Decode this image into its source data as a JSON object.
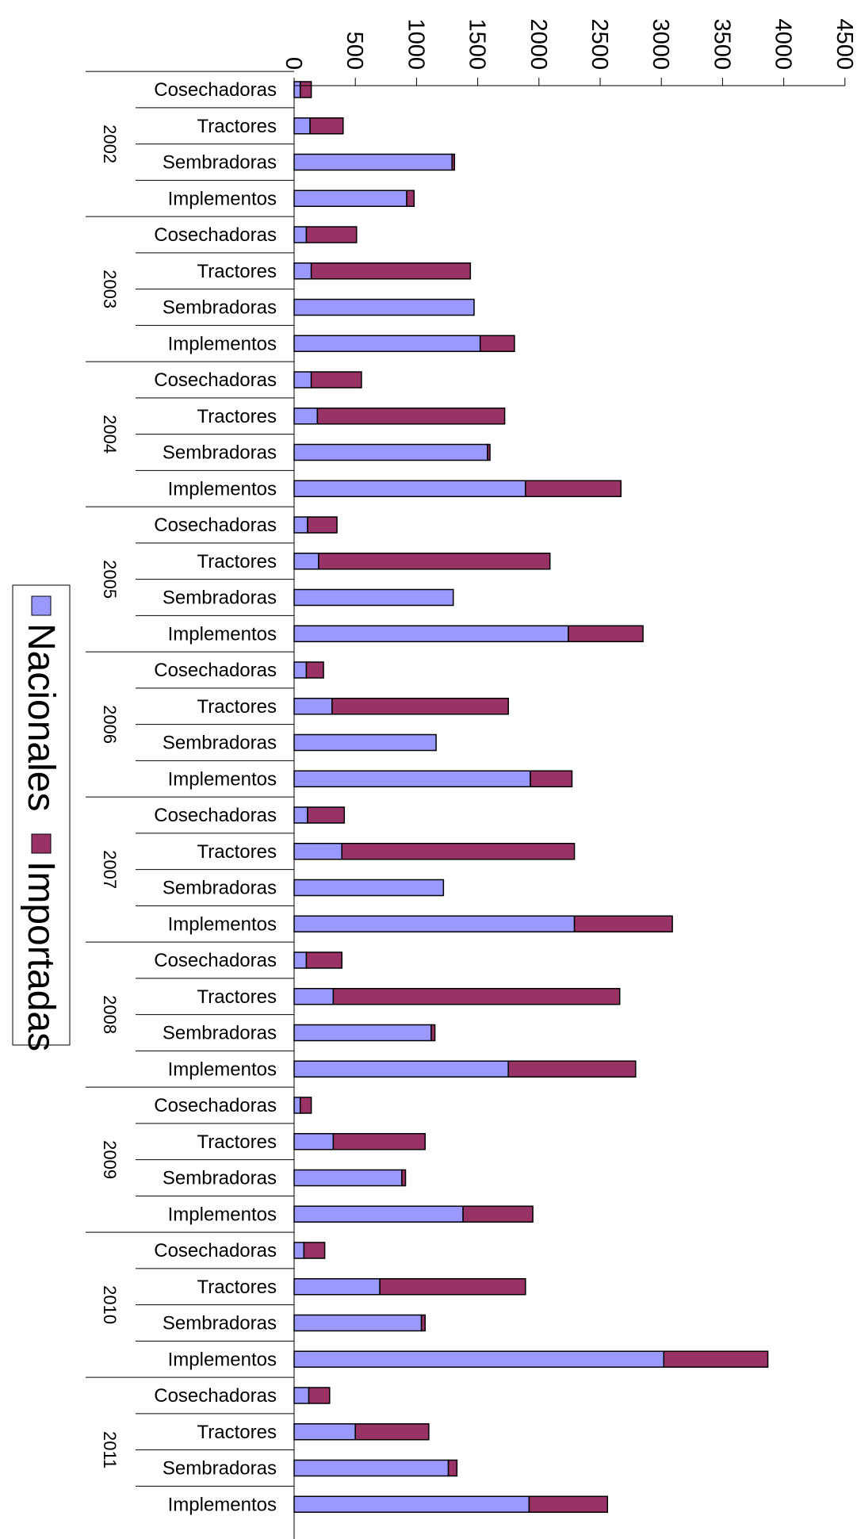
{
  "chart_data": {
    "type": "bar",
    "orientation": "horizontal-stacked",
    "xlim": [
      0,
      4500
    ],
    "ticks": [
      "0",
      "500",
      "1000",
      "1500",
      "2000",
      "2500",
      "3000",
      "3500",
      "4000",
      "4500"
    ],
    "tick_values": [
      0,
      500,
      1000,
      1500,
      2000,
      2500,
      3000,
      3500,
      4000,
      4500
    ],
    "categories": [
      "Cosechadoras",
      "Tractores",
      "Sembradoras",
      "Implementos"
    ],
    "groups": [
      {
        "year": "2002",
        "nacionales": [
          50,
          130,
          1290,
          920
        ],
        "importadas": [
          90,
          270,
          20,
          60
        ]
      },
      {
        "year": "2003",
        "nacionales": [
          100,
          140,
          1470,
          1520
        ],
        "importadas": [
          410,
          1300,
          0,
          280
        ]
      },
      {
        "year": "2004",
        "nacionales": [
          140,
          190,
          1580,
          1890
        ],
        "importadas": [
          410,
          1530,
          20,
          780
        ]
      },
      {
        "year": "2005",
        "nacionales": [
          110,
          200,
          1300,
          2240
        ],
        "importadas": [
          240,
          1890,
          0,
          610
        ]
      },
      {
        "year": "2006",
        "nacionales": [
          100,
          310,
          1160,
          1930
        ],
        "importadas": [
          140,
          1440,
          0,
          340
        ]
      },
      {
        "year": "2007",
        "nacionales": [
          110,
          390,
          1220,
          2290
        ],
        "importadas": [
          300,
          1900,
          0,
          800
        ]
      },
      {
        "year": "2008",
        "nacionales": [
          100,
          320,
          1120,
          1750
        ],
        "importadas": [
          290,
          2340,
          30,
          1040
        ]
      },
      {
        "year": "2009",
        "nacionales": [
          50,
          320,
          880,
          1380
        ],
        "importadas": [
          90,
          750,
          30,
          570
        ]
      },
      {
        "year": "2010",
        "nacionales": [
          80,
          700,
          1040,
          3020
        ],
        "importadas": [
          170,
          1190,
          30,
          850
        ]
      },
      {
        "year": "2011",
        "nacionales": [
          120,
          500,
          1260,
          1920
        ],
        "importadas": [
          170,
          600,
          70,
          640
        ]
      }
    ],
    "series": [
      {
        "name": "Nacionales",
        "color": "#9999ff"
      },
      {
        "name": "Importadas",
        "color": "#993366"
      }
    ],
    "legend_position": "left",
    "grid": false
  }
}
